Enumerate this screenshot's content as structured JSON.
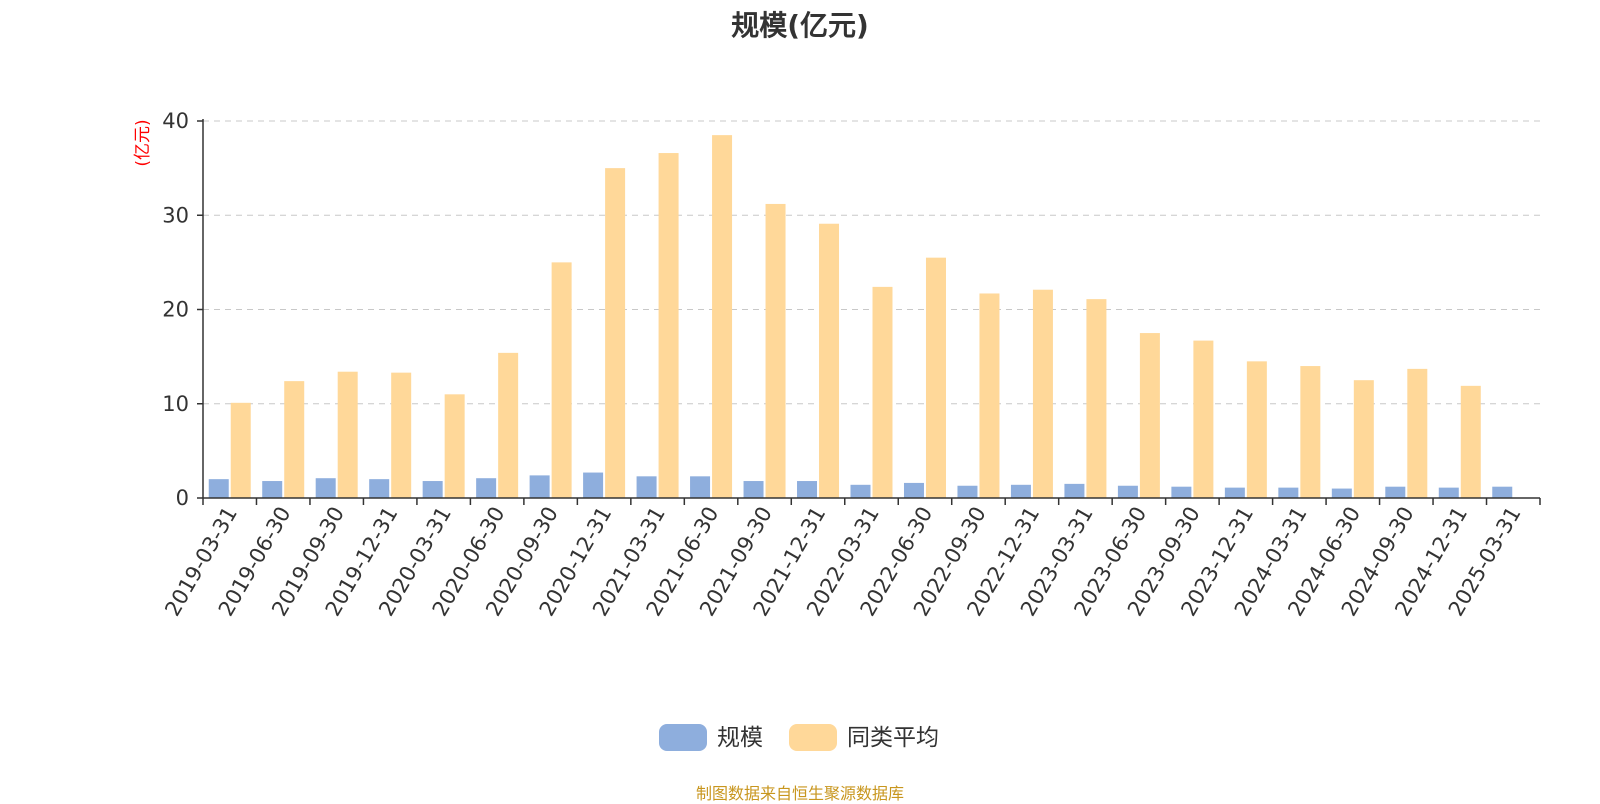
{
  "title": "规模(亿元)",
  "footer": "制图数据来自恒生聚源数据库",
  "colors": {
    "scale": "#8eaedd",
    "avg": "#ffd899",
    "unit": "#ff0000",
    "footer": "#c8961e"
  },
  "chart_data": {
    "type": "bar",
    "title": "规模(亿元)",
    "ylabel": "(亿元)",
    "ylim": [
      0,
      40
    ],
    "yticks": [
      0,
      10,
      20,
      30,
      40
    ],
    "grid": true,
    "legend_position": "bottom-center",
    "categories": [
      "2019-03-31",
      "2019-06-30",
      "2019-09-30",
      "2019-12-31",
      "2020-03-31",
      "2020-06-30",
      "2020-09-30",
      "2020-12-31",
      "2021-03-31",
      "2021-06-30",
      "2021-09-30",
      "2021-12-31",
      "2022-03-31",
      "2022-06-30",
      "2022-09-30",
      "2022-12-31",
      "2023-03-31",
      "2023-06-30",
      "2023-09-30",
      "2023-12-31",
      "2024-03-31",
      "2024-06-30",
      "2024-09-30",
      "2024-12-31",
      "2025-03-31"
    ],
    "series": [
      {
        "name": "规模",
        "color": "#8eaedd",
        "values": [
          2.0,
          1.8,
          2.1,
          2.0,
          1.8,
          2.1,
          2.4,
          2.7,
          2.3,
          2.3,
          1.8,
          1.8,
          1.4,
          1.6,
          1.3,
          1.4,
          1.5,
          1.3,
          1.2,
          1.1,
          1.1,
          1.0,
          1.2,
          1.1,
          1.2
        ]
      },
      {
        "name": "同类平均",
        "color": "#ffd899",
        "values": [
          10.1,
          12.4,
          13.4,
          13.3,
          11.0,
          15.4,
          25.0,
          35.0,
          36.6,
          38.5,
          31.2,
          29.1,
          22.4,
          25.5,
          21.7,
          22.1,
          21.1,
          17.5,
          16.7,
          14.5,
          14.0,
          12.5,
          13.7,
          11.9,
          null
        ]
      }
    ]
  }
}
